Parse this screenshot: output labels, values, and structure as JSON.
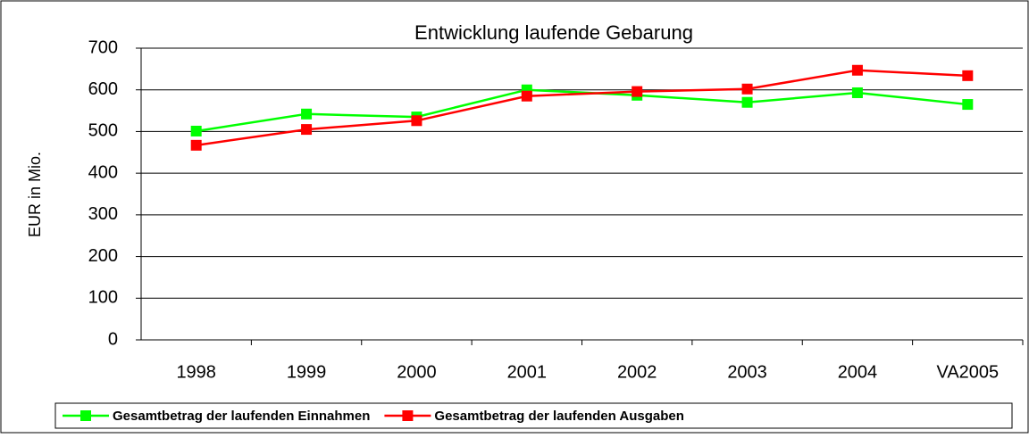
{
  "chart_data": {
    "type": "line",
    "title": "Entwicklung laufende Gebarung",
    "y_label": "EUR in Mio.",
    "categories": [
      "1998",
      "1999",
      "2000",
      "2001",
      "2002",
      "2003",
      "2004",
      "VA2005"
    ],
    "series": [
      {
        "name": "Gesamtbetrag der laufenden Einnahmen",
        "color": "#00ff00",
        "values": [
          501,
          542,
          535,
          600,
          587,
          570,
          593,
          565
        ]
      },
      {
        "name": "Gesamtbetrag der laufenden Ausgaben",
        "color": "#ff0000",
        "values": [
          467,
          505,
          526,
          585,
          596,
          602,
          647,
          634
        ]
      }
    ],
    "ylim": [
      0,
      700
    ],
    "yticks": [
      0,
      100,
      200,
      300,
      400,
      500,
      600,
      700
    ],
    "grid": true
  }
}
